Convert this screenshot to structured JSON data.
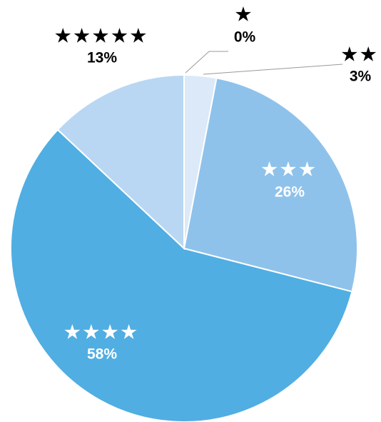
{
  "chart_data": {
    "type": "pie",
    "categories": [
      "★",
      "★★",
      "★★★",
      "★★★★",
      "★★★★★"
    ],
    "values": [
      0,
      3,
      26,
      58,
      13
    ],
    "value_labels": [
      "0%",
      "3%",
      "26%",
      "58%",
      "13%"
    ],
    "colors": [
      "#e3eefa",
      "#dbe9f8",
      "#8ec2eb",
      "#50aee2",
      "#b9d7f3"
    ],
    "label_colors": [
      "#000000",
      "#000000",
      "#ffffff",
      "#ffffff",
      "#000000"
    ]
  }
}
